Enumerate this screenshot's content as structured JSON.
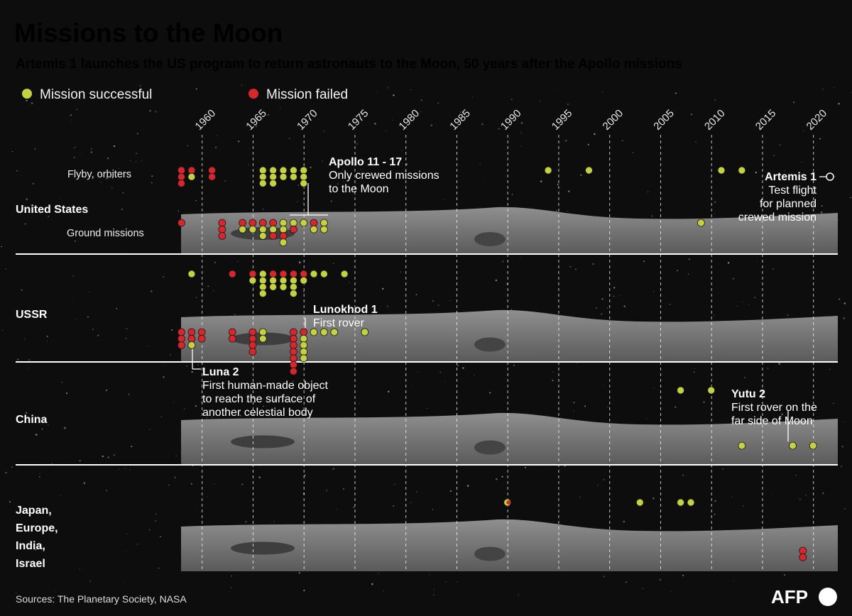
{
  "header": {
    "title": "Missions to the Moon",
    "subtitle": "Artemis 1 launches the US program to return astronauts to the Moon, 50 years after the Apollo missions"
  },
  "legend": {
    "success": "Mission successful",
    "failed": "Mission failed"
  },
  "colors": {
    "success": "#c4d240",
    "failed": "#d7262c",
    "background": "#0d0d0d",
    "divider": "#ffffff",
    "planned": "#ffffff"
  },
  "footer": {
    "sources": "Sources: The Planetary Society, NASA",
    "logo": "AFP"
  },
  "chart_data": {
    "type": "scatter",
    "title": "Missions to the Moon",
    "x_axis": {
      "ticks": [
        1960,
        1965,
        1970,
        1975,
        1980,
        1985,
        1990,
        1995,
        2000,
        2005,
        2010,
        2015,
        2020
      ],
      "xlim": [
        1958,
        2022
      ],
      "label": ""
    },
    "rows": [
      {
        "label": "United States",
        "sub_rows": [
          {
            "label": "Flyby, orbiters",
            "missions": [
              {
                "year": 1958,
                "stack": [
                  [
                    "f",
                    "f",
                    "f"
                  ]
                ]
              },
              {
                "year": 1959,
                "stack": [
                  [
                    "f",
                    "s"
                  ]
                ]
              },
              {
                "year": 1961,
                "stack": [
                  [
                    "f",
                    "f"
                  ]
                ]
              },
              {
                "year": 1966,
                "stack": [
                  [
                    "s",
                    "s",
                    "s"
                  ]
                ]
              },
              {
                "year": 1967,
                "stack": [
                  [
                    "s",
                    "s",
                    "s"
                  ]
                ]
              },
              {
                "year": 1968,
                "stack": [
                  [
                    "s",
                    "s"
                  ]
                ]
              },
              {
                "year": 1969,
                "stack": [
                  [
                    "s",
                    "s"
                  ]
                ]
              },
              {
                "year": 1970,
                "stack": [
                  [
                    "s",
                    "s",
                    "s"
                  ]
                ]
              },
              {
                "year": 1994,
                "stack": [
                  [
                    "s"
                  ]
                ]
              },
              {
                "year": 1998,
                "stack": [
                  [
                    "s"
                  ]
                ]
              },
              {
                "year": 2011,
                "stack": [
                  [
                    "s"
                  ]
                ]
              },
              {
                "year": 2013,
                "stack": [
                  [
                    "s"
                  ]
                ]
              }
            ]
          },
          {
            "label": "Ground missions",
            "missions": [
              {
                "year": 1958,
                "stack": [
                  [
                    "f"
                  ]
                ]
              },
              {
                "year": 1962,
                "stack": [
                  [
                    "f",
                    "f",
                    "f"
                  ]
                ]
              },
              {
                "year": 1964,
                "stack": [
                  [
                    "f",
                    "s"
                  ]
                ]
              },
              {
                "year": 1965,
                "stack": [
                  [
                    "f",
                    "s"
                  ]
                ]
              },
              {
                "year": 1966,
                "stack": [
                  [
                    "f",
                    "s",
                    "s"
                  ]
                ]
              },
              {
                "year": 1967,
                "stack": [
                  [
                    "f",
                    "s",
                    "f"
                  ]
                ]
              },
              {
                "year": 1968,
                "stack": [
                  [
                    "s",
                    "s",
                    "f",
                    "s"
                  ]
                ]
              },
              {
                "year": 1969,
                "stack": [
                  [
                    "s",
                    "f"
                  ]
                ]
              },
              {
                "year": 1970,
                "stack": [
                  [
                    "s"
                  ]
                ]
              },
              {
                "year": 1971,
                "stack": [
                  [
                    "f",
                    "s"
                  ]
                ]
              },
              {
                "year": 1972,
                "stack": [
                  [
                    "s",
                    "s"
                  ]
                ]
              },
              {
                "year": 2009,
                "stack": [
                  [
                    "s"
                  ]
                ]
              }
            ]
          }
        ],
        "planned": [
          {
            "year": 2022,
            "name": "Artemis 1"
          }
        ]
      },
      {
        "label": "USSR",
        "sub_rows": [
          {
            "label": "",
            "missions": [
              {
                "year": 1959,
                "stack": [
                  [
                    "s"
                  ]
                ]
              },
              {
                "year": 1963,
                "stack": [
                  [
                    "f"
                  ]
                ]
              },
              {
                "year": 1965,
                "stack": [
                  [
                    "f",
                    "s"
                  ]
                ]
              },
              {
                "year": 1966,
                "stack": [
                  [
                    "s",
                    "s",
                    "s",
                    "s"
                  ]
                ]
              },
              {
                "year": 1967,
                "stack": [
                  [
                    "f",
                    "s",
                    "s"
                  ]
                ]
              },
              {
                "year": 1968,
                "stack": [
                  [
                    "f",
                    "s",
                    "s"
                  ]
                ]
              },
              {
                "year": 1969,
                "stack": [
                  [
                    "f",
                    "s",
                    "s",
                    "s"
                  ]
                ]
              },
              {
                "year": 1970,
                "stack": [
                  [
                    "f",
                    "s"
                  ]
                ]
              },
              {
                "year": 1971,
                "stack": [
                  [
                    "s"
                  ]
                ]
              },
              {
                "year": 1972,
                "stack": [
                  [
                    "s"
                  ]
                ]
              },
              {
                "year": 1974,
                "stack": [
                  [
                    "s"
                  ]
                ]
              }
            ]
          },
          {
            "label": "",
            "missions": [
              {
                "year": 1958,
                "stack": [
                  [
                    "f",
                    "f",
                    "f"
                  ]
                ]
              },
              {
                "year": 1959,
                "stack": [
                  [
                    "f",
                    "f",
                    "s"
                  ]
                ]
              },
              {
                "year": 1960,
                "stack": [
                  [
                    "f",
                    "f"
                  ]
                ]
              },
              {
                "year": 1963,
                "stack": [
                  [
                    "f",
                    "f"
                  ]
                ]
              },
              {
                "year": 1965,
                "stack": [
                  [
                    "f",
                    "f",
                    "f",
                    "f"
                  ]
                ]
              },
              {
                "year": 1966,
                "stack": [
                  [
                    "s",
                    "s"
                  ]
                ]
              },
              {
                "year": 1969,
                "stack": [
                  [
                    "f",
                    "f",
                    "f",
                    "f",
                    "f",
                    "f",
                    "f"
                  ]
                ]
              },
              {
                "year": 1970,
                "stack": [
                  [
                    "f",
                    "s",
                    "s",
                    "s",
                    "s"
                  ]
                ]
              },
              {
                "year": 1971,
                "stack": [
                  [
                    "s"
                  ]
                ]
              },
              {
                "year": 1972,
                "stack": [
                  [
                    "s"
                  ]
                ]
              },
              {
                "year": 1973,
                "stack": [
                  [
                    "s"
                  ]
                ]
              },
              {
                "year": 1976,
                "stack": [
                  [
                    "s"
                  ]
                ]
              }
            ]
          }
        ]
      },
      {
        "label": "China",
        "sub_rows": [
          {
            "label": "",
            "missions": [
              {
                "year": 2007,
                "stack": [
                  [
                    "s"
                  ]
                ]
              },
              {
                "year": 2010,
                "stack": [
                  [
                    "s"
                  ]
                ]
              }
            ]
          },
          {
            "label": "",
            "missions": [
              {
                "year": 2013,
                "stack": [
                  [
                    "s"
                  ]
                ]
              },
              {
                "year": 2018,
                "stack": [
                  [
                    "s"
                  ]
                ]
              },
              {
                "year": 2020,
                "stack": [
                  [
                    "s"
                  ]
                ]
              }
            ]
          }
        ]
      },
      {
        "label": "Japan,\nEurope,\nIndia,\nIsrael",
        "label_lines": [
          "Japan,",
          "Europe,",
          "India,",
          "Israel"
        ],
        "sub_rows": [
          {
            "label": "",
            "missions": [
              {
                "year": 1990,
                "stack": [
                  [
                    "m"
                  ]
                ]
              },
              {
                "year": 2003,
                "stack": [
                  [
                    "s"
                  ]
                ]
              },
              {
                "year": 2007,
                "stack": [
                  [
                    "s"
                  ]
                ]
              },
              {
                "year": 2008,
                "stack": [
                  [
                    "s"
                  ]
                ]
              }
            ]
          },
          {
            "label": "",
            "missions": [
              {
                "year": 2019,
                "stack": [
                  [
                    "f",
                    "f"
                  ]
                ]
              }
            ]
          }
        ]
      }
    ],
    "annotations": [
      {
        "title": "Apollo 11 - 17",
        "lines": [
          "Only crewed missions",
          "to the Moon"
        ]
      },
      {
        "title": "Artemis 1",
        "lines": [
          "Test flight",
          "for planned",
          "crewed mission"
        ]
      },
      {
        "title": "Lunokhod 1",
        "lines": [
          "First rover"
        ]
      },
      {
        "title": "Luna 2",
        "lines": [
          "First human-made object",
          "to reach the surface of",
          "another celestial body"
        ]
      },
      {
        "title": "Yutu 2",
        "lines": [
          "First rover on the",
          "far side of Moon"
        ]
      }
    ]
  }
}
